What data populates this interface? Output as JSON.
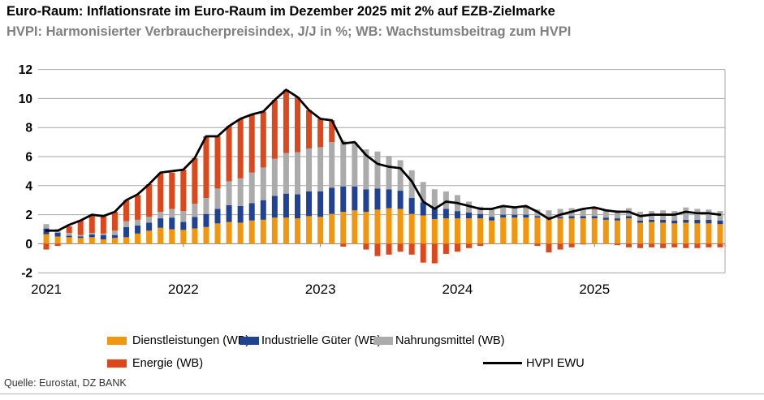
{
  "header": {
    "title": "Euro-Raum: Inflationsrate im Euro-Raum im Dezember 2025 mit 2% auf EZB-Zielmarke",
    "subtitle": "HVPI: Harmonisierter Verbraucherpreisindex, J/J in %; WB: Wachstumsbeitrag zum HVPI"
  },
  "source": "Quelle: Eurostat, DZ BANK",
  "colors": {
    "services": "#F2960D",
    "goods": "#1F4295",
    "food": "#ABABAB",
    "energy": "#DC481C",
    "line": "#000000",
    "grid": "#A6A6A6",
    "axis": "#7F7F7F",
    "subtitle_text": "#808080"
  },
  "legend": {
    "services": "Dienstleistungen (WB)",
    "goods": "Industrielle Güter (WB)",
    "food": "Nahrungsmittel (WB)",
    "energy": "Energie (WB)",
    "line": "HVPI EWU"
  },
  "chart_data": {
    "type": "bar",
    "subtype": "stacked-bars-with-line",
    "title": "Euro-Raum: Inflationsrate im Euro-Raum im Dezember 2025 mit 2% auf EZB-Zielmarke",
    "ylabel": "J/J in %",
    "ylim": [
      -2,
      12
    ],
    "y_ticks": [
      12,
      10,
      8,
      6,
      4,
      2,
      0,
      -2
    ],
    "x_ticks": [
      "2021",
      "2022",
      "2023",
      "2024",
      "2025"
    ],
    "grid": true,
    "legend_position": "bottom",
    "categories": [
      "2021-01",
      "2021-02",
      "2021-03",
      "2021-04",
      "2021-05",
      "2021-06",
      "2021-07",
      "2021-08",
      "2021-09",
      "2021-10",
      "2021-11",
      "2021-12",
      "2022-01",
      "2022-02",
      "2022-03",
      "2022-04",
      "2022-05",
      "2022-06",
      "2022-07",
      "2022-08",
      "2022-09",
      "2022-10",
      "2022-11",
      "2022-12",
      "2023-01",
      "2023-02",
      "2023-03",
      "2023-04",
      "2023-05",
      "2023-06",
      "2023-07",
      "2023-08",
      "2023-09",
      "2023-10",
      "2023-11",
      "2023-12",
      "2024-01",
      "2024-02",
      "2024-03",
      "2024-04",
      "2024-05",
      "2024-06",
      "2024-07",
      "2024-08",
      "2024-09",
      "2024-10",
      "2024-11",
      "2024-12",
      "2025-01",
      "2025-02",
      "2025-03",
      "2025-04",
      "2025-05",
      "2025-06",
      "2025-07",
      "2025-08",
      "2025-09",
      "2025-10",
      "2025-11",
      "2025-12"
    ],
    "series": [
      {
        "id": "services",
        "name": "Dienstleistungen (WB)",
        "values": [
          0.65,
          0.5,
          0.45,
          0.4,
          0.45,
          0.3,
          0.4,
          0.45,
          0.7,
          0.9,
          1.1,
          1.0,
          0.95,
          1.05,
          1.15,
          1.4,
          1.5,
          1.45,
          1.6,
          1.65,
          1.8,
          1.8,
          1.75,
          1.9,
          1.85,
          2.05,
          2.2,
          2.3,
          2.2,
          2.35,
          2.45,
          2.4,
          2.05,
          1.95,
          1.7,
          1.75,
          1.75,
          1.75,
          1.75,
          1.6,
          1.8,
          1.8,
          1.8,
          1.8,
          1.75,
          1.75,
          1.75,
          1.75,
          1.75,
          1.65,
          1.6,
          1.75,
          1.45,
          1.5,
          1.45,
          1.4,
          1.45,
          1.4,
          1.4,
          1.35
        ]
      },
      {
        "id": "goods",
        "name": "Industrielle Güter (WB)",
        "values": [
          0.4,
          0.25,
          0.1,
          0.1,
          0.2,
          0.3,
          0.2,
          0.7,
          0.55,
          0.55,
          0.65,
          0.8,
          0.55,
          0.8,
          0.9,
          1.0,
          1.15,
          1.15,
          1.2,
          1.35,
          1.5,
          1.65,
          1.65,
          1.7,
          1.75,
          1.8,
          1.75,
          1.65,
          1.55,
          1.45,
          1.3,
          1.25,
          1.1,
          0.9,
          0.75,
          0.65,
          0.5,
          0.4,
          0.3,
          0.25,
          0.2,
          0.2,
          0.2,
          0.1,
          0.1,
          0.1,
          0.15,
          0.15,
          0.15,
          0.15,
          0.15,
          0.15,
          0.15,
          0.15,
          0.2,
          0.2,
          0.2,
          0.25,
          0.25,
          0.25
        ]
      },
      {
        "id": "food",
        "name": "Nahrungsmittel (WB)",
        "values": [
          0.3,
          0.25,
          0.2,
          0.1,
          0.1,
          0.1,
          0.3,
          0.4,
          0.4,
          0.4,
          0.45,
          0.6,
          0.75,
          0.9,
          1.1,
          1.4,
          1.65,
          1.9,
          2.1,
          2.25,
          2.55,
          2.8,
          2.9,
          2.95,
          3.05,
          3.15,
          3.15,
          3.05,
          2.75,
          2.55,
          2.3,
          2.1,
          1.9,
          1.4,
          1.3,
          1.2,
          1.1,
          0.75,
          0.5,
          0.55,
          0.5,
          0.5,
          0.45,
          0.45,
          0.45,
          0.55,
          0.55,
          0.55,
          0.45,
          0.5,
          0.55,
          0.55,
          0.6,
          0.6,
          0.65,
          0.65,
          0.85,
          0.75,
          0.7,
          0.65
        ]
      },
      {
        "id": "energy",
        "name": "Energie (WB)",
        "values": [
          -0.4,
          -0.15,
          0.45,
          1.0,
          1.25,
          1.2,
          1.3,
          1.45,
          1.7,
          2.25,
          2.65,
          2.5,
          2.85,
          3.15,
          4.25,
          3.6,
          3.8,
          4.1,
          4.0,
          3.85,
          4.05,
          4.35,
          3.8,
          2.65,
          1.95,
          1.5,
          -0.2,
          0.0,
          -0.4,
          -0.85,
          -0.75,
          -0.55,
          -0.75,
          -1.3,
          -1.35,
          -0.7,
          -0.55,
          -0.3,
          -0.15,
          0.0,
          0.1,
          0.0,
          0.15,
          -0.15,
          -0.6,
          -0.4,
          -0.25,
          -0.05,
          0.15,
          0.0,
          -0.1,
          -0.25,
          -0.3,
          -0.25,
          -0.3,
          -0.25,
          -0.3,
          -0.3,
          -0.25,
          -0.25
        ]
      }
    ],
    "line_series": {
      "id": "hvpi",
      "name": "HVPI EWU",
      "values": [
        0.9,
        0.9,
        1.3,
        1.6,
        2.0,
        1.9,
        2.2,
        3.0,
        3.4,
        4.1,
        4.9,
        5.0,
        5.1,
        5.9,
        7.4,
        7.4,
        8.1,
        8.6,
        8.9,
        9.1,
        9.9,
        10.6,
        10.1,
        9.2,
        8.6,
        8.5,
        6.9,
        7.0,
        6.1,
        5.5,
        5.3,
        5.2,
        4.3,
        2.9,
        2.4,
        2.9,
        2.8,
        2.6,
        2.4,
        2.4,
        2.6,
        2.5,
        2.6,
        2.2,
        1.7,
        2.0,
        2.2,
        2.4,
        2.5,
        2.3,
        2.2,
        2.2,
        1.9,
        2.0,
        2.0,
        2.0,
        2.2,
        2.1,
        2.1,
        2.0
      ]
    }
  }
}
